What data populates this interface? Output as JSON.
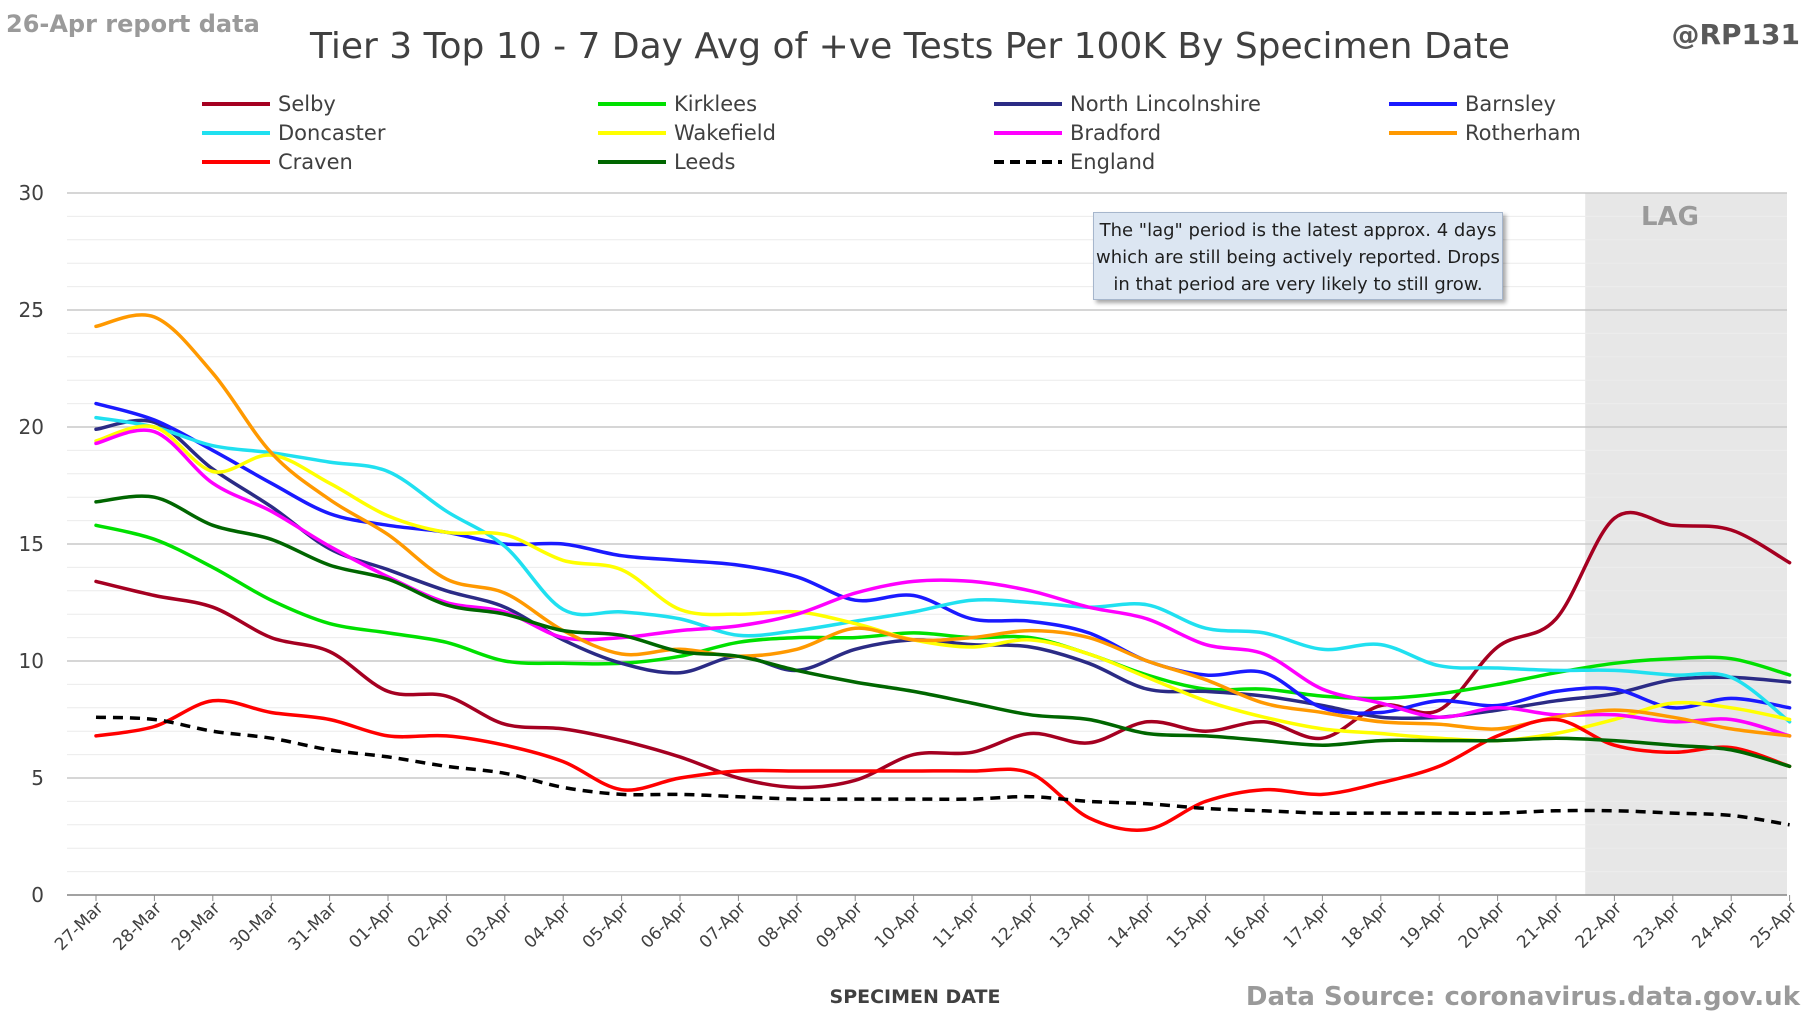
{
  "header": {
    "report_date": "26-Apr report data",
    "handle": "@RP131",
    "source": "Data Source: coronavirus.data.gov.uk"
  },
  "annotation": {
    "lag_label": "LAG",
    "note_line1": "The \"lag\" period is the latest approx. 4 days",
    "note_line2": "which are still being actively reported.  Drops",
    "note_line3": "in that period are very likely to still grow."
  },
  "chart_data": {
    "type": "line",
    "title": "Tier 3 Top 10 - 7 Day Avg of +ve Tests Per 100K By Specimen Date",
    "xlabel": "SPECIMEN DATE",
    "ylabel": "",
    "ylim": [
      0,
      30
    ],
    "yticks": [
      0,
      5,
      10,
      15,
      20,
      25,
      30
    ],
    "grid": true,
    "legend_position": "top",
    "lag_range": [
      "22-Apr",
      "25-Apr"
    ],
    "categories": [
      "27-Mar",
      "28-Mar",
      "29-Mar",
      "30-Mar",
      "31-Mar",
      "01-Apr",
      "02-Apr",
      "03-Apr",
      "04-Apr",
      "05-Apr",
      "06-Apr",
      "07-Apr",
      "08-Apr",
      "09-Apr",
      "10-Apr",
      "11-Apr",
      "12-Apr",
      "13-Apr",
      "14-Apr",
      "15-Apr",
      "16-Apr",
      "17-Apr",
      "18-Apr",
      "19-Apr",
      "20-Apr",
      "21-Apr",
      "22-Apr",
      "23-Apr",
      "24-Apr",
      "25-Apr"
    ],
    "series": [
      {
        "name": "Selby",
        "color": "#a50021",
        "dashed": false,
        "values": [
          13.4,
          12.8,
          12.3,
          11.0,
          10.4,
          8.7,
          8.5,
          7.3,
          7.1,
          6.6,
          5.9,
          5.0,
          4.6,
          4.9,
          6.0,
          6.1,
          6.9,
          6.5,
          7.4,
          7.0,
          7.4,
          6.7,
          8.1,
          7.9,
          10.6,
          11.8,
          16.1,
          15.8,
          15.6,
          14.2
        ]
      },
      {
        "name": "Kirklees",
        "color": "#00e000",
        "dashed": false,
        "values": [
          15.8,
          15.2,
          14.0,
          12.6,
          11.6,
          11.2,
          10.8,
          10.0,
          9.9,
          9.9,
          10.2,
          10.8,
          11.0,
          11.0,
          11.2,
          11.0,
          11.0,
          10.3,
          9.4,
          8.8,
          8.8,
          8.5,
          8.4,
          8.6,
          9.0,
          9.5,
          9.9,
          10.1,
          10.1,
          9.4
        ]
      },
      {
        "name": "North Lincolnshire",
        "color": "#2b2b85",
        "dashed": false,
        "values": [
          19.9,
          20.2,
          18.2,
          16.6,
          14.8,
          13.9,
          13.0,
          12.3,
          10.9,
          9.9,
          9.5,
          10.2,
          9.6,
          10.5,
          10.9,
          10.7,
          10.6,
          9.9,
          8.8,
          8.7,
          8.5,
          8.1,
          7.6,
          7.6,
          7.9,
          8.3,
          8.6,
          9.2,
          9.3,
          9.1
        ]
      },
      {
        "name": "Barnsley",
        "color": "#1a1aff",
        "dashed": false,
        "values": [
          21.0,
          20.3,
          19.0,
          17.6,
          16.3,
          15.8,
          15.5,
          15.0,
          15.0,
          14.5,
          14.3,
          14.1,
          13.6,
          12.6,
          12.8,
          11.8,
          11.7,
          11.2,
          10.0,
          9.4,
          9.5,
          8.0,
          7.8,
          8.3,
          8.1,
          8.7,
          8.8,
          8.0,
          8.4,
          8.0
        ]
      },
      {
        "name": "Doncaster",
        "color": "#20e0f0",
        "dashed": false,
        "values": [
          20.4,
          20.0,
          19.2,
          18.9,
          18.5,
          18.1,
          16.4,
          14.9,
          12.2,
          12.1,
          11.8,
          11.1,
          11.3,
          11.7,
          12.1,
          12.6,
          12.5,
          12.3,
          12.4,
          11.4,
          11.2,
          10.5,
          10.7,
          9.8,
          9.7,
          9.6,
          9.6,
          9.4,
          9.3,
          7.4
        ]
      },
      {
        "name": "Wakefield",
        "color": "#ffff00",
        "dashed": false,
        "values": [
          19.4,
          20.0,
          18.1,
          18.8,
          17.6,
          16.2,
          15.5,
          15.4,
          14.3,
          13.9,
          12.2,
          12.0,
          12.1,
          11.6,
          10.9,
          10.6,
          10.9,
          10.3,
          9.3,
          8.3,
          7.6,
          7.1,
          6.9,
          6.7,
          6.6,
          6.9,
          7.5,
          8.2,
          8.0,
          7.5
        ]
      },
      {
        "name": "Bradford",
        "color": "#ff00ff",
        "dashed": false,
        "values": [
          19.3,
          19.8,
          17.6,
          16.4,
          14.9,
          13.6,
          12.5,
          12.1,
          11.0,
          11.0,
          11.3,
          11.5,
          12.0,
          12.9,
          13.4,
          13.4,
          13.0,
          12.3,
          11.8,
          10.7,
          10.3,
          8.8,
          8.2,
          7.6,
          8.0,
          7.7,
          7.7,
          7.4,
          7.5,
          6.8
        ]
      },
      {
        "name": "Rotherham",
        "color": "#ff9900",
        "dashed": false,
        "values": [
          24.3,
          24.7,
          22.3,
          18.9,
          16.9,
          15.4,
          13.5,
          12.9,
          11.3,
          10.3,
          10.5,
          10.2,
          10.5,
          11.4,
          10.9,
          11.0,
          11.3,
          11.0,
          10.0,
          9.2,
          8.2,
          7.8,
          7.4,
          7.3,
          7.1,
          7.6,
          7.9,
          7.6,
          7.1,
          6.8
        ]
      },
      {
        "name": "Craven",
        "color": "#ff0000",
        "dashed": false,
        "values": [
          6.8,
          7.2,
          8.3,
          7.8,
          7.5,
          6.8,
          6.8,
          6.4,
          5.7,
          4.5,
          5.0,
          5.3,
          5.3,
          5.3,
          5.3,
          5.3,
          5.2,
          3.3,
          2.8,
          4.0,
          4.5,
          4.3,
          4.8,
          5.5,
          6.8,
          7.5,
          6.4,
          6.1,
          6.3,
          5.5
        ]
      },
      {
        "name": "Leeds",
        "color": "#006600",
        "dashed": false,
        "values": [
          16.8,
          17.0,
          15.8,
          15.2,
          14.1,
          13.5,
          12.4,
          12.0,
          11.3,
          11.1,
          10.4,
          10.2,
          9.6,
          9.1,
          8.7,
          8.2,
          7.7,
          7.5,
          6.9,
          6.8,
          6.6,
          6.4,
          6.6,
          6.6,
          6.6,
          6.7,
          6.6,
          6.4,
          6.2,
          5.5
        ]
      },
      {
        "name": "England",
        "color": "#000000",
        "dashed": true,
        "values": [
          7.6,
          7.5,
          7.0,
          6.7,
          6.2,
          5.9,
          5.5,
          5.2,
          4.6,
          4.3,
          4.3,
          4.2,
          4.1,
          4.1,
          4.1,
          4.1,
          4.2,
          4.0,
          3.9,
          3.7,
          3.6,
          3.5,
          3.5,
          3.5,
          3.5,
          3.6,
          3.6,
          3.5,
          3.4,
          3.0
        ]
      }
    ]
  }
}
